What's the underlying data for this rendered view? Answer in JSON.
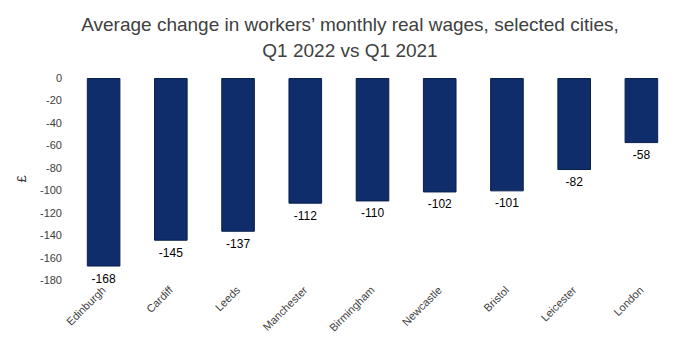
{
  "chart_data": {
    "type": "bar",
    "title": "Average change in workers’ monthly real wages, selected cities,\nQ1 2022 vs Q1 2021",
    "y_label": "£",
    "categories": [
      "Edinburgh",
      "Cardiff",
      "Leeds",
      "Manchester",
      "Birmingham",
      "Newcastle",
      "Bristol",
      "Leicester",
      "London"
    ],
    "values": [
      -168,
      -145,
      -137,
      -112,
      -110,
      -102,
      -101,
      -82,
      -58
    ],
    "color": "#0f2d6b",
    "ylim": [
      -180,
      0
    ],
    "yticks": [
      -180,
      -160,
      -140,
      -120,
      -100,
      -80,
      -60,
      -40,
      -20,
      0
    ],
    "grid": false,
    "data_labels": true
  }
}
